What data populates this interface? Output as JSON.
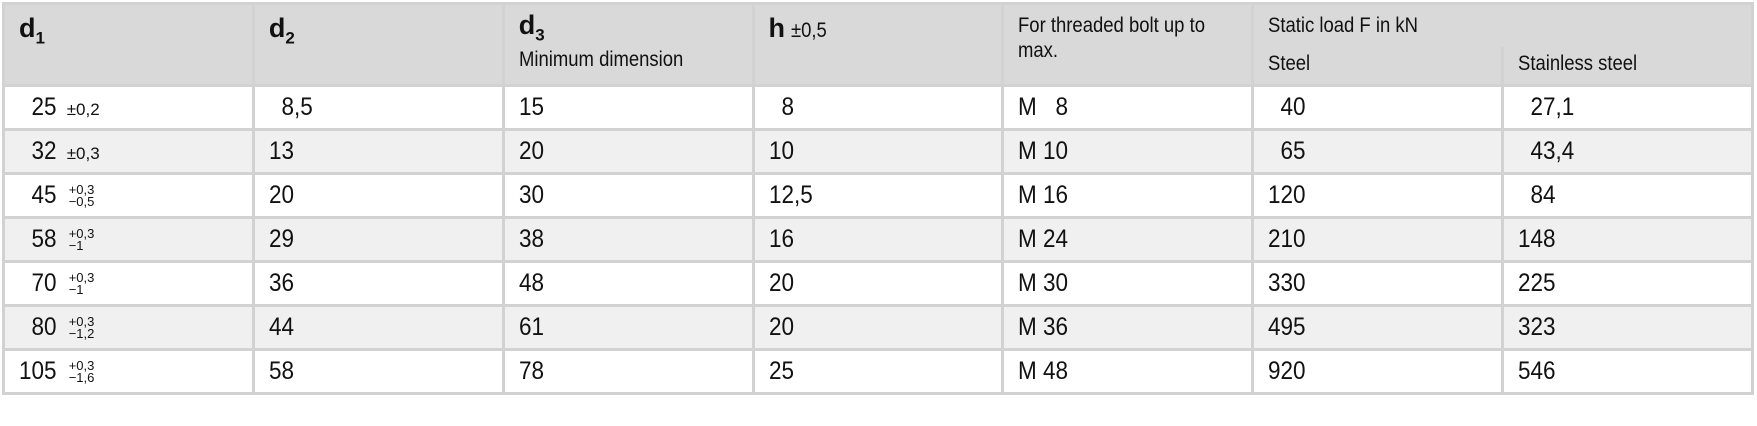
{
  "header": {
    "d1": {
      "symbol": "d",
      "index": "1"
    },
    "d2": {
      "symbol": "d",
      "index": "2"
    },
    "d3": {
      "symbol": "d",
      "index": "3",
      "note": "Minimum dimension"
    },
    "h": {
      "symbol": "h",
      "tolerance": "±0,5"
    },
    "bolt": "For threaded bolt up to max.",
    "load_group": "Static load F in kN",
    "steel": "Steel",
    "stainless": "Stainless steel"
  },
  "rows": [
    {
      "d1": "25",
      "d1_tol": "±0,2",
      "d2": "8,5",
      "d3": "15",
      "h": "8",
      "bolt": "M 8",
      "steel": "40",
      "stainless": "27,1"
    },
    {
      "d1": "32",
      "d1_tol": "±0,3",
      "d2": "13",
      "d3": "20",
      "h": "10",
      "bolt": "M 10",
      "steel": "65",
      "stainless": "43,4"
    },
    {
      "d1": "45",
      "d1_tol_upper": "+0,3",
      "d1_tol_lower": "−0,5",
      "d2": "20",
      "d3": "30",
      "h": "12,5",
      "bolt": "M 16",
      "steel": "120",
      "stainless": "84"
    },
    {
      "d1": "58",
      "d1_tol_upper": "+0,3",
      "d1_tol_lower": "−1",
      "d2": "29",
      "d3": "38",
      "h": "16",
      "bolt": "M 24",
      "steel": "210",
      "stainless": "148"
    },
    {
      "d1": "70",
      "d1_tol_upper": "+0,3",
      "d1_tol_lower": "−1",
      "d2": "36",
      "d3": "48",
      "h": "20",
      "bolt": "M 30",
      "steel": "330",
      "stainless": "225"
    },
    {
      "d1": "80",
      "d1_tol_upper": "+0,3",
      "d1_tol_lower": "−1,2",
      "d2": "44",
      "d3": "61",
      "h": "20",
      "bolt": "M 36",
      "steel": "495",
      "stainless": "323"
    },
    {
      "d1": "105",
      "d1_tol_upper": "+0,3",
      "d1_tol_lower": "−1,6",
      "d2": "58",
      "d3": "78",
      "h": "25",
      "bolt": "M 48",
      "steel": "920",
      "stainless": "546"
    }
  ],
  "colors": {
    "header_bg": "#d9d9d9",
    "row_alt_bg": "#f0f0f0",
    "grid": "#d2d2d2"
  }
}
